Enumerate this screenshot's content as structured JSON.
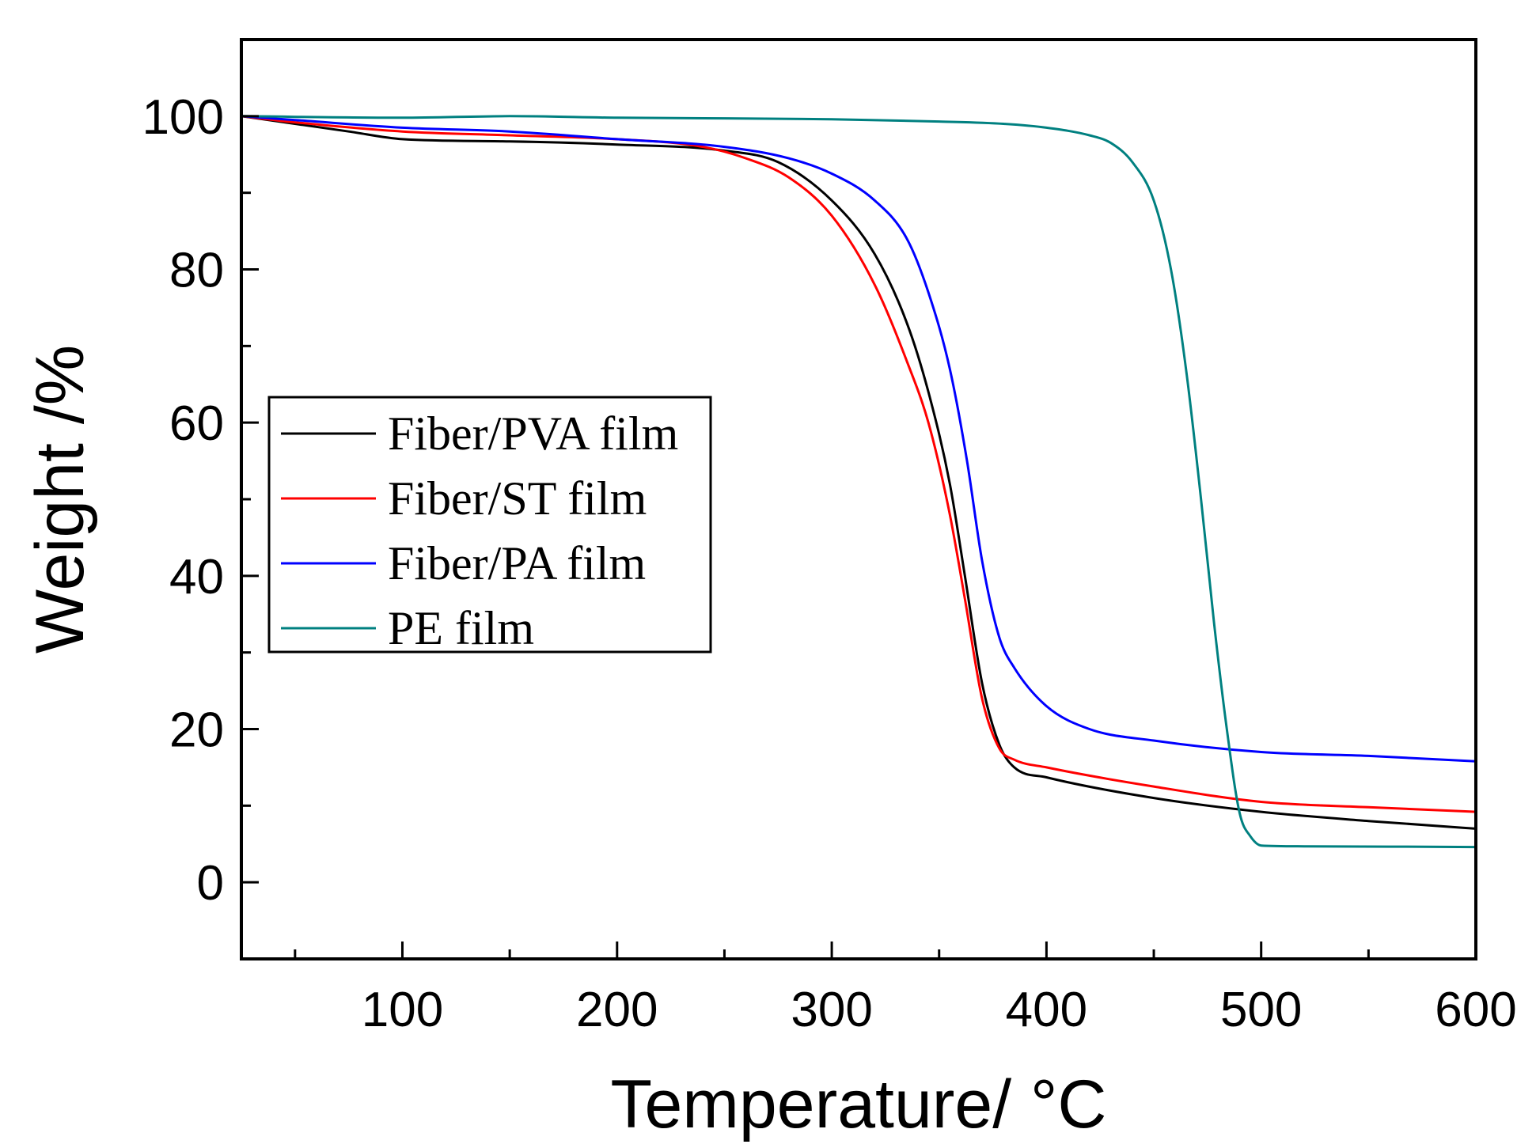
{
  "chart_data": {
    "type": "line",
    "title": "",
    "xlabel": "Temperature/ °C",
    "ylabel": "Weight /%",
    "xlim": [
      25,
      600
    ],
    "ylim": [
      -10,
      110
    ],
    "x_ticks": [
      100,
      200,
      300,
      400,
      500,
      600
    ],
    "x_tick_labels": [
      "100",
      "200",
      "300",
      "400",
      "500",
      "600"
    ],
    "y_ticks": [
      0,
      20,
      40,
      60,
      80,
      100
    ],
    "y_tick_labels": [
      "0",
      "20",
      "40",
      "60",
      "80",
      "100"
    ],
    "grid": false,
    "legend_position": "middle-left",
    "series": [
      {
        "name": "Fiber/PVA film",
        "color": "#000000",
        "x": [
          25,
          50,
          75,
          100,
          150,
          200,
          250,
          275,
          300,
          320,
          335,
          345,
          355,
          362,
          370,
          378,
          385,
          400,
          450,
          500,
          550,
          600
        ],
        "y": [
          100,
          99,
          98,
          97,
          96.7,
          96.3,
          95.5,
          94,
          89,
          82,
          73,
          64,
          52,
          40,
          26,
          18,
          15,
          13.7,
          11,
          9.2,
          8,
          7
        ]
      },
      {
        "name": "Fiber/ST film",
        "color": "#ff0000",
        "x": [
          25,
          50,
          100,
          150,
          200,
          240,
          260,
          280,
          300,
          320,
          335,
          345,
          355,
          362,
          370,
          378,
          385,
          400,
          450,
          500,
          550,
          600
        ],
        "y": [
          100,
          99.2,
          98,
          97.5,
          97,
          96,
          94.5,
          92,
          87,
          78,
          68,
          60,
          48,
          37,
          24,
          17.5,
          16,
          15,
          12.5,
          10.5,
          9.8,
          9.2
        ]
      },
      {
        "name": "Fiber/PA film",
        "color": "#0000ff",
        "x": [
          25,
          50,
          100,
          150,
          200,
          250,
          280,
          300,
          320,
          335,
          345,
          355,
          363,
          370,
          378,
          385,
          400,
          420,
          450,
          500,
          550,
          600
        ],
        "y": [
          100,
          99.5,
          98.5,
          98,
          97,
          96,
          94.5,
          92.5,
          89,
          84,
          77,
          67,
          55,
          42,
          32,
          28,
          23,
          20,
          18.5,
          17,
          16.5,
          15.8
        ]
      },
      {
        "name": "PE film",
        "color": "#008080",
        "x": [
          25,
          100,
          150,
          200,
          300,
          350,
          380,
          400,
          420,
          430,
          440,
          450,
          458,
          465,
          472,
          478,
          484,
          490,
          495,
          500,
          520,
          600
        ],
        "y": [
          100,
          99.8,
          100,
          99.8,
          99.6,
          99.3,
          99,
          98.5,
          97.5,
          96.5,
          94,
          89,
          80,
          67,
          50,
          34,
          20,
          9,
          6,
          4.8,
          4.7,
          4.6
        ]
      }
    ]
  }
}
